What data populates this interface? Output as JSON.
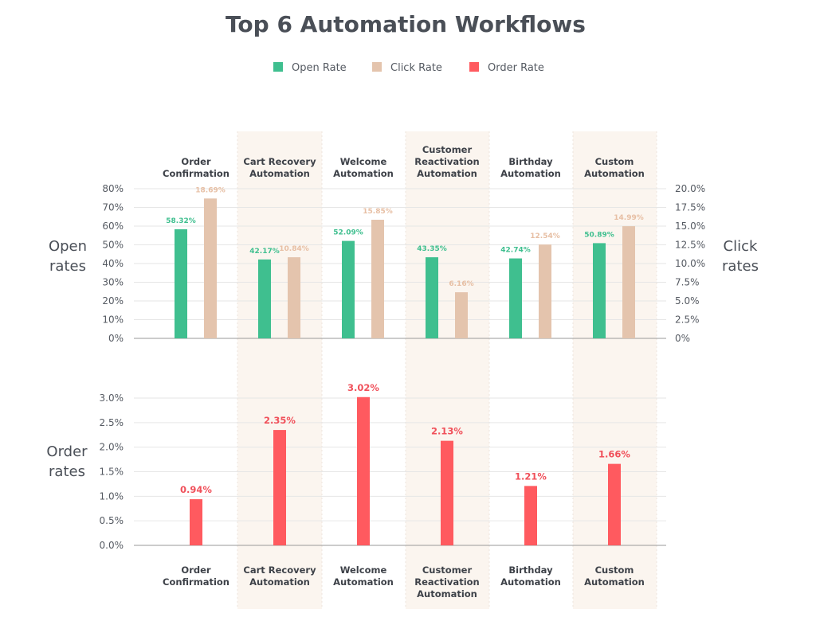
{
  "chart_data": [
    {
      "type": "bar",
      "title": "Top 6 Automation Workflows",
      "categories": [
        [
          "Order",
          "Confirmation"
        ],
        [
          "Cart Recovery",
          "Automation"
        ],
        [
          "Welcome",
          "Automation"
        ],
        [
          "Customer",
          "Reactivation",
          "Automation"
        ],
        [
          "Birthday",
          "Automation"
        ],
        [
          "Custom",
          "Automation"
        ]
      ],
      "legend_position": "top",
      "series": [
        {
          "name": "Open Rate",
          "axis": "left",
          "color": "#3fbf8f",
          "values": [
            58.32,
            42.17,
            52.09,
            43.35,
            42.74,
            50.89
          ],
          "labels": [
            "58.32%",
            "42.17%",
            "52.09%",
            "43.35%",
            "42.74%",
            "50.89%"
          ]
        },
        {
          "name": "Click Rate",
          "axis": "right",
          "color": "#e4c4ad",
          "values": [
            18.69,
            10.84,
            15.85,
            6.16,
            12.54,
            14.99
          ],
          "labels": [
            "18.69%",
            "10.84%",
            "15.85%",
            "6.16%",
            "12.54%",
            "14.99%"
          ]
        }
      ],
      "y_left": {
        "label": [
          "Open",
          "rates"
        ],
        "ylim": [
          0,
          80
        ],
        "ticks": [
          "0%",
          "10%",
          "20%",
          "30%",
          "40%",
          "50%",
          "60%",
          "70%",
          "80%"
        ]
      },
      "y_right": {
        "label": [
          "Click",
          "rates"
        ],
        "ylim": [
          0,
          20
        ],
        "ticks": [
          "0%",
          "2.5%",
          "5.0%",
          "7.5%",
          "10.0%",
          "12.5%",
          "15.0%",
          "17.5%",
          "20.0%"
        ]
      },
      "grid": true
    },
    {
      "type": "bar",
      "categories": [
        [
          "Order",
          "Confirmation"
        ],
        [
          "Cart Recovery",
          "Automation"
        ],
        [
          "Welcome",
          "Automation"
        ],
        [
          "Customer",
          "Reactivation",
          "Automation"
        ],
        [
          "Birthday",
          "Automation"
        ],
        [
          "Custom",
          "Automation"
        ]
      ],
      "series": [
        {
          "name": "Order Rate",
          "color": "#ff5a5f",
          "values": [
            0.94,
            2.35,
            3.02,
            2.13,
            1.21,
            1.66
          ],
          "labels": [
            "0.94%",
            "2.35%",
            "3.02%",
            "2.13%",
            "1.21%",
            "1.66%"
          ]
        }
      ],
      "y_left": {
        "label": [
          "Order",
          "rates"
        ],
        "ylim": [
          0,
          3.0
        ],
        "ticks": [
          "0.0%",
          "0.5%",
          "1.0%",
          "1.5%",
          "2.0%",
          "2.5%",
          "3.0%"
        ]
      },
      "grid": true
    }
  ],
  "colors": {
    "highlight_band": "#fbf5ef",
    "grid": "#e6e6e6",
    "axis": "#999999"
  }
}
